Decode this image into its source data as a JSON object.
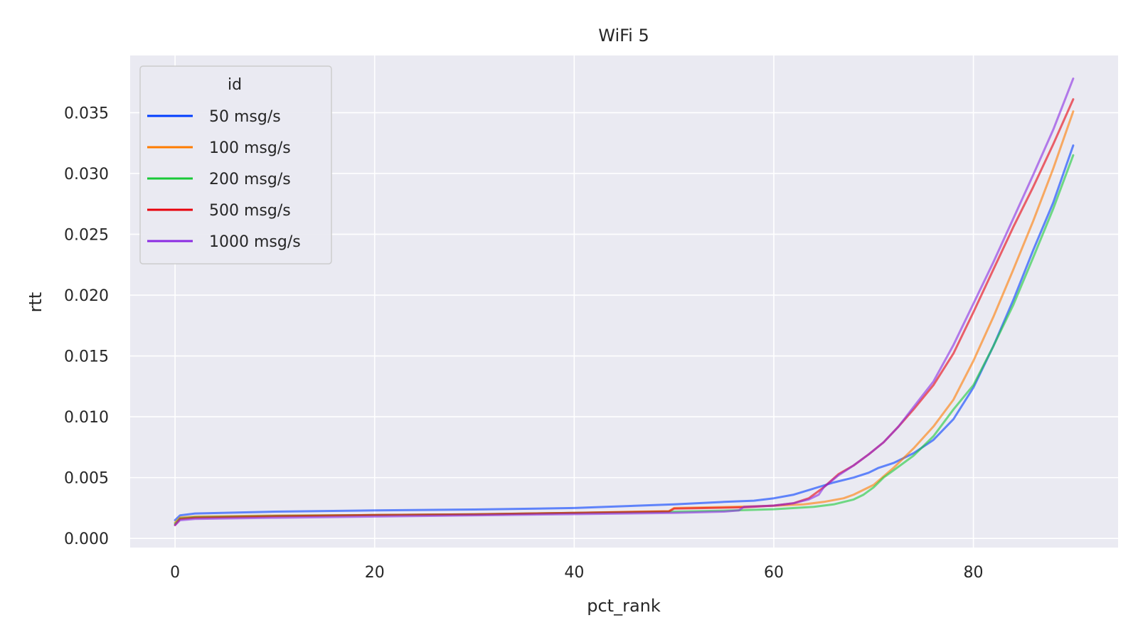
{
  "chart_data": {
    "type": "line",
    "title": "WiFi 5",
    "xlabel": "pct_rank",
    "ylabel": "rtt",
    "xlim": [
      -4.5,
      94.5
    ],
    "ylim": [
      -0.00075,
      0.0397
    ],
    "x_ticks": [
      0,
      20,
      40,
      60,
      80
    ],
    "x_tick_labels": [
      "0",
      "20",
      "40",
      "60",
      "80"
    ],
    "y_ticks": [
      0.0,
      0.005,
      0.01,
      0.015,
      0.02,
      0.025,
      0.03,
      0.035
    ],
    "y_tick_labels": [
      "0.000",
      "0.005",
      "0.010",
      "0.015",
      "0.020",
      "0.025",
      "0.030",
      "0.035"
    ],
    "grid": true,
    "legend": {
      "title": "id",
      "position": "top-left"
    },
    "series": [
      {
        "name": "50 msg/s",
        "color": "#023eff",
        "x": [
          0,
          0.5,
          2,
          10,
          20,
          30,
          40,
          50,
          55,
          58,
          60,
          62,
          64,
          66,
          68,
          69.5,
          70.5,
          72,
          74,
          76,
          78,
          80,
          82,
          84,
          86,
          88,
          90
        ],
        "y": [
          0.0015,
          0.0019,
          0.00205,
          0.0022,
          0.0023,
          0.00238,
          0.0025,
          0.0028,
          0.003,
          0.0031,
          0.0033,
          0.0036,
          0.0041,
          0.0046,
          0.005,
          0.0054,
          0.0058,
          0.0062,
          0.007,
          0.0081,
          0.0098,
          0.0124,
          0.0158,
          0.0196,
          0.0237,
          0.0276,
          0.0323
        ]
      },
      {
        "name": "100 msg/s",
        "color": "#ff7c00",
        "x": [
          0,
          0.5,
          2,
          10,
          20,
          30,
          40,
          49.5,
          50,
          55,
          60,
          63,
          65,
          67,
          68,
          70,
          72,
          74,
          76,
          78,
          80,
          82,
          84,
          86,
          88,
          90
        ],
        "y": [
          0.0013,
          0.00172,
          0.0018,
          0.00188,
          0.00192,
          0.00197,
          0.0021,
          0.00225,
          0.0025,
          0.00258,
          0.00268,
          0.0028,
          0.003,
          0.0033,
          0.0036,
          0.0044,
          0.0058,
          0.0074,
          0.0092,
          0.0114,
          0.0146,
          0.0182,
          0.0221,
          0.0261,
          0.0304,
          0.0351
        ]
      },
      {
        "name": "200 msg/s",
        "color": "#1ac938",
        "x": [
          0,
          0.5,
          2,
          10,
          20,
          30,
          40,
          50,
          56,
          60,
          64,
          66,
          68,
          69,
          70,
          71,
          72,
          74,
          76,
          78,
          80,
          82,
          84,
          86,
          88,
          90
        ],
        "y": [
          0.0012,
          0.00165,
          0.00175,
          0.00185,
          0.00192,
          0.00198,
          0.0021,
          0.0022,
          0.0023,
          0.0024,
          0.0026,
          0.0028,
          0.0032,
          0.0036,
          0.0042,
          0.005,
          0.0056,
          0.0068,
          0.0084,
          0.0106,
          0.0126,
          0.0158,
          0.0192,
          0.0231,
          0.0271,
          0.0315
        ]
      },
      {
        "name": "500 msg/s",
        "color": "#e8000b",
        "x": [
          0,
          0.5,
          2,
          10,
          20,
          30,
          40,
          49.5,
          50,
          57,
          60,
          62,
          63.5,
          65,
          66.5,
          68,
          69.5,
          71,
          72.5,
          74,
          76,
          78,
          80,
          82,
          84,
          86,
          88,
          90
        ],
        "y": [
          0.0011,
          0.0016,
          0.0017,
          0.00182,
          0.00192,
          0.00198,
          0.0021,
          0.00222,
          0.00245,
          0.00255,
          0.0027,
          0.0029,
          0.0033,
          0.0042,
          0.0053,
          0.006,
          0.0069,
          0.0079,
          0.0092,
          0.0106,
          0.0126,
          0.0152,
          0.0186,
          0.0221,
          0.0256,
          0.0289,
          0.0324,
          0.0361
        ]
      },
      {
        "name": "1000 msg/s",
        "color": "#8b2be2",
        "x": [
          0,
          0.5,
          2,
          10,
          20,
          30,
          40,
          50,
          55,
          56.5,
          57,
          60,
          62,
          63.5,
          64.5,
          65,
          66.5,
          68,
          69.5,
          71,
          72.5,
          74,
          76,
          78,
          80,
          82,
          84,
          86,
          88,
          90
        ],
        "y": [
          0.0011,
          0.0015,
          0.0016,
          0.0017,
          0.0018,
          0.0019,
          0.002,
          0.0021,
          0.0022,
          0.0023,
          0.0026,
          0.0027,
          0.0029,
          0.0032,
          0.0036,
          0.0042,
          0.0052,
          0.006,
          0.0069,
          0.0079,
          0.0092,
          0.0108,
          0.0129,
          0.0159,
          0.0193,
          0.0227,
          0.0263,
          0.0299,
          0.0336,
          0.0378
        ]
      }
    ]
  }
}
